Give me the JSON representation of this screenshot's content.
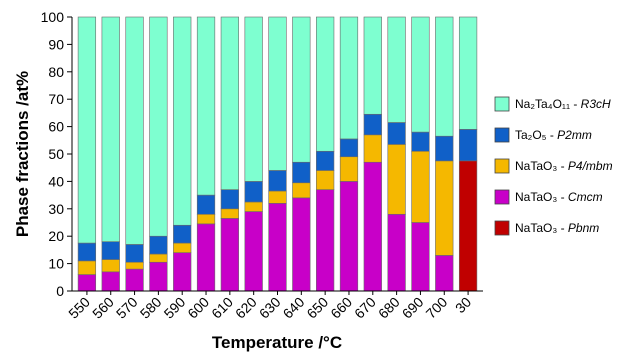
{
  "chart_data": {
    "type": "bar",
    "stacked": true,
    "xlabel": "Temperature /°C",
    "ylabel": "Phase fractions /at%",
    "ylim": [
      0,
      100
    ],
    "yticks": [
      0,
      10,
      20,
      30,
      40,
      50,
      60,
      70,
      80,
      90,
      100
    ],
    "grid": false,
    "legend_position": "right",
    "categories": [
      "550",
      "560",
      "570",
      "580",
      "590",
      "600",
      "610",
      "620",
      "630",
      "640",
      "650",
      "660",
      "670",
      "680",
      "690",
      "700",
      "30"
    ],
    "series": [
      {
        "id": "pbnm",
        "name_base": "NaTaO₃ - ",
        "name_sym": "Pbnm",
        "color": "#c00000",
        "values": [
          0,
          0,
          0,
          0,
          0,
          0,
          0,
          0,
          0,
          0,
          0,
          0,
          0,
          0,
          0,
          0,
          47.5
        ]
      },
      {
        "id": "cmcm",
        "name_base": "NaTaO₃ - ",
        "name_sym": "Cmcm",
        "color": "#c800c8",
        "values": [
          6,
          7,
          8,
          10.5,
          14,
          24.5,
          26.5,
          29,
          32,
          34,
          37,
          40,
          47,
          28,
          25,
          13,
          0
        ]
      },
      {
        "id": "p4mbm",
        "name_base": "NaTaO₃ - ",
        "name_sym": "P4/mbm",
        "color": "#f5b800",
        "values": [
          5,
          4.5,
          2.5,
          3,
          3.5,
          3.5,
          3.5,
          3.5,
          4.5,
          5.5,
          7,
          9,
          10,
          25.5,
          26,
          34.5,
          0
        ]
      },
      {
        "id": "p2mm",
        "name_base": "Ta₂O₅ - ",
        "name_sym": "P2mm",
        "color": "#1060c8",
        "values": [
          6.5,
          6.5,
          6.5,
          6.5,
          6.5,
          7,
          7,
          7.5,
          7.5,
          7.5,
          7,
          6.5,
          7.5,
          8,
          7,
          9,
          11.5
        ]
      },
      {
        "id": "na2ta4o11",
        "name_base": "Na₂Ta₄O₁₁ - ",
        "name_sym": "R3cH",
        "color": "#7effd0",
        "values": [
          82.5,
          82,
          83,
          80,
          76,
          65,
          63,
          60,
          56,
          53,
          49,
          44.5,
          35.5,
          38.5,
          42,
          43.5,
          41
        ]
      }
    ],
    "legend_order": [
      "na2ta4o11",
      "p2mm",
      "p4mbm",
      "cmcm",
      "pbnm"
    ]
  }
}
